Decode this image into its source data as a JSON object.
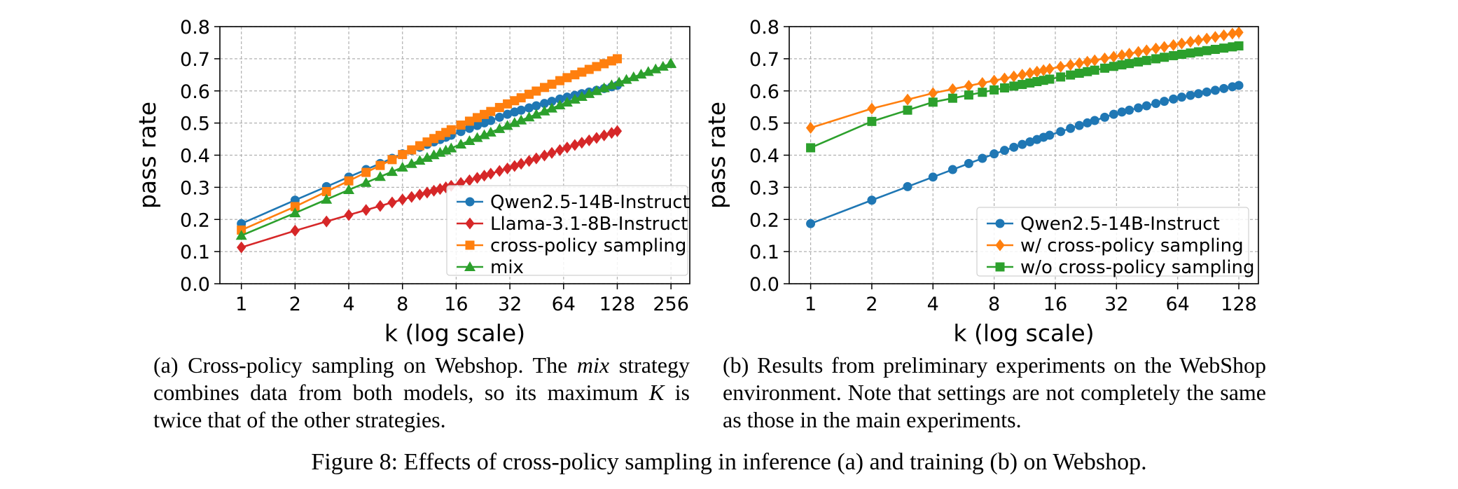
{
  "chart_data": [
    {
      "type": "line",
      "xscale": "log2",
      "xlabel": "k (log scale)",
      "ylabel": "pass rate",
      "ylim": [
        0.0,
        0.8
      ],
      "yticks": [
        "0.0",
        "0.1",
        "0.2",
        "0.3",
        "0.4",
        "0.5",
        "0.6",
        "0.7",
        "0.8"
      ],
      "xticks": [
        "1",
        "2",
        "4",
        "8",
        "16",
        "32",
        "64",
        "128",
        "256"
      ],
      "grid": true,
      "legend_position": "lower-right",
      "series": [
        {
          "name": "Qwen2.5-14B-Instruct",
          "color": "#1f77b4",
          "marker": "circle",
          "max_k": 128,
          "points": [
            [
              1,
              0.187
            ],
            [
              2,
              0.26
            ],
            [
              4,
              0.332
            ],
            [
              8,
              0.404
            ],
            [
              16,
              0.468
            ],
            [
              32,
              0.53
            ],
            [
              64,
              0.578
            ],
            [
              128,
              0.617
            ]
          ]
        },
        {
          "name": "Llama-3.1-8B-Instruct",
          "color": "#d62728",
          "marker": "diamond",
          "max_k": 128,
          "points": [
            [
              1,
              0.113
            ],
            [
              2,
              0.165
            ],
            [
              4,
              0.214
            ],
            [
              8,
              0.262
            ],
            [
              16,
              0.309
            ],
            [
              32,
              0.361
            ],
            [
              64,
              0.42
            ],
            [
              128,
              0.475
            ]
          ]
        },
        {
          "name": "cross-policy sampling",
          "color": "#ff7f0e",
          "marker": "square",
          "max_k": 128,
          "points": [
            [
              1,
              0.167
            ],
            [
              2,
              0.24
            ],
            [
              4,
              0.32
            ],
            [
              8,
              0.402
            ],
            [
              16,
              0.487
            ],
            [
              32,
              0.563
            ],
            [
              64,
              0.637
            ],
            [
              128,
              0.7
            ]
          ]
        },
        {
          "name": "mix",
          "color": "#2ca02c",
          "marker": "triangle",
          "max_k": 256,
          "points": [
            [
              1,
              0.15
            ],
            [
              2,
              0.22
            ],
            [
              4,
              0.292
            ],
            [
              8,
              0.362
            ],
            [
              16,
              0.428
            ],
            [
              32,
              0.495
            ],
            [
              64,
              0.56
            ],
            [
              128,
              0.625
            ],
            [
              256,
              0.685
            ]
          ]
        }
      ]
    },
    {
      "type": "line",
      "xscale": "log2",
      "xlabel": "k (log scale)",
      "ylabel": "pass rate",
      "ylim": [
        0.0,
        0.8
      ],
      "yticks": [
        "0.0",
        "0.1",
        "0.2",
        "0.3",
        "0.4",
        "0.5",
        "0.6",
        "0.7",
        "0.8"
      ],
      "xticks": [
        "1",
        "2",
        "4",
        "8",
        "16",
        "32",
        "64",
        "128"
      ],
      "grid": true,
      "legend_position": "lower-right",
      "series": [
        {
          "name": "Qwen2.5-14B-Instruct",
          "color": "#1f77b4",
          "marker": "circle",
          "max_k": 128,
          "points": [
            [
              1,
              0.187
            ],
            [
              2,
              0.26
            ],
            [
              4,
              0.332
            ],
            [
              8,
              0.404
            ],
            [
              16,
              0.468
            ],
            [
              32,
              0.53
            ],
            [
              64,
              0.578
            ],
            [
              128,
              0.617
            ]
          ]
        },
        {
          "name": "w/ cross-policy sampling",
          "color": "#ff7f0e",
          "marker": "diamond",
          "max_k": 128,
          "points": [
            [
              1,
              0.485
            ],
            [
              2,
              0.545
            ],
            [
              4,
              0.593
            ],
            [
              8,
              0.632
            ],
            [
              16,
              0.672
            ],
            [
              32,
              0.708
            ],
            [
              64,
              0.745
            ],
            [
              128,
              0.782
            ]
          ]
        },
        {
          "name": "w/o cross-policy sampling",
          "color": "#2ca02c",
          "marker": "square",
          "max_k": 128,
          "points": [
            [
              1,
              0.423
            ],
            [
              2,
              0.505
            ],
            [
              4,
              0.565
            ],
            [
              8,
              0.603
            ],
            [
              16,
              0.64
            ],
            [
              32,
              0.678
            ],
            [
              64,
              0.712
            ],
            [
              128,
              0.74
            ]
          ]
        }
      ]
    }
  ],
  "captions": {
    "a_label": "(a) Cross-policy sampling on Webshop. The ",
    "a_italic": "mix",
    "a_rest": " strategy combines data from both models, so its maximum ",
    "a_K": "K",
    "a_end": " is twice that of the other strategies.",
    "b": "(b) Results from preliminary experiments on the WebShop environment.  Note that settings are not completely the same as those in the main experiments.",
    "figure": "Figure 8: Effects of cross-policy sampling in inference (a) and training (b) on Webshop."
  }
}
